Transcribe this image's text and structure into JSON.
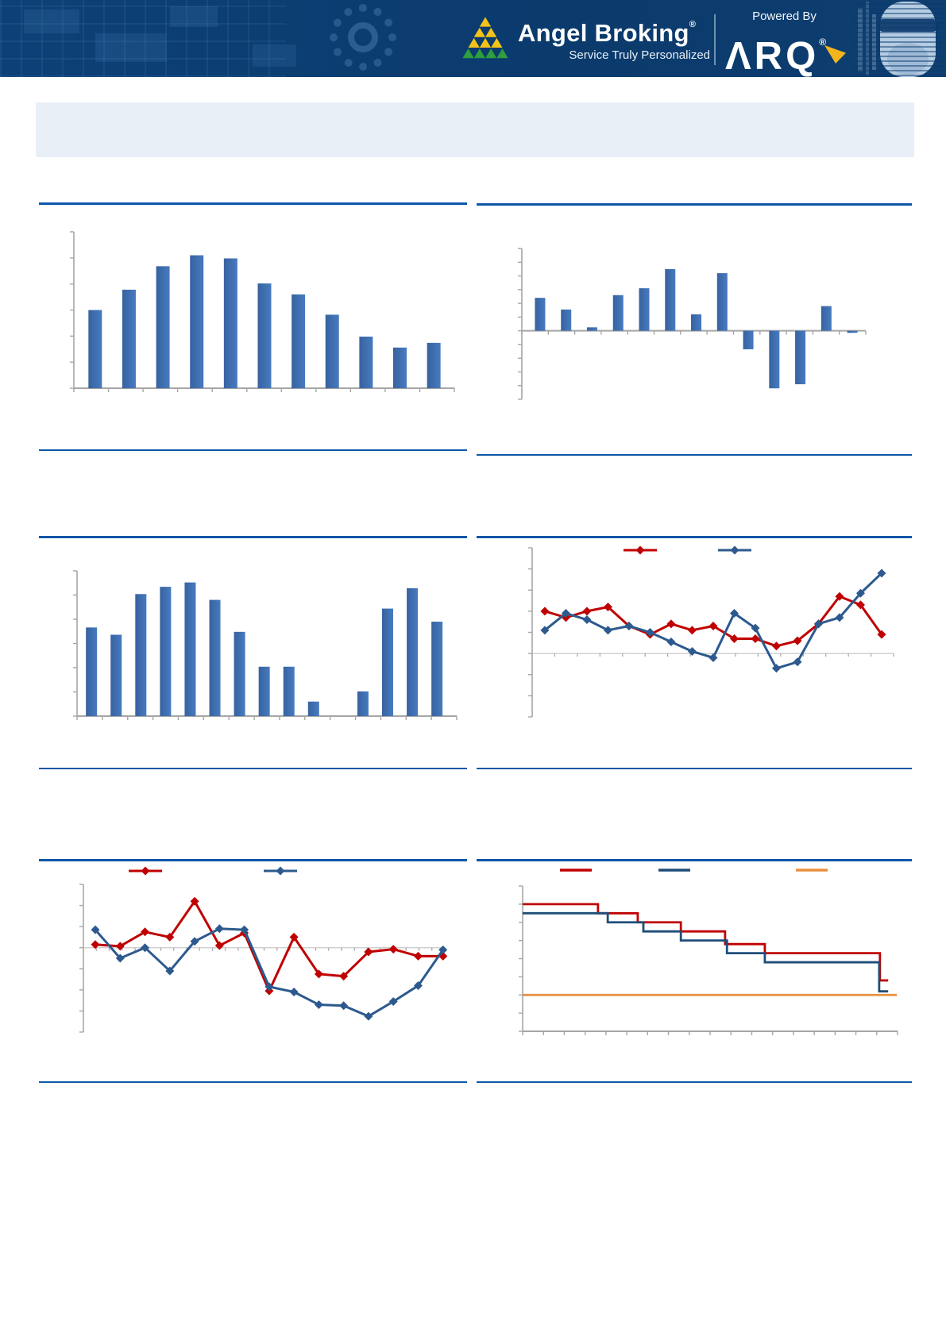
{
  "header": {
    "brand": "Angel Broking",
    "brand_reg": "®",
    "tagline": "Service Truly Personalized",
    "powered_by": "Powered By",
    "product": "ΛRQ",
    "product_reg": "®"
  },
  "colors": {
    "banner": "#0C3D71",
    "section_line": "#0D57A8",
    "title_box": "#E9EFF7",
    "axis": "#A6A6A6",
    "zero_line": "#C8C8C8",
    "bar_blue": "#3A6BB2",
    "red": "#C00000",
    "line_blue": "#2D5A8E",
    "step_blue": "#1F4E79",
    "orange": "#E8913F",
    "logo_green": "#2F9E3D",
    "logo_yellow": "#F3C317"
  },
  "chart_data": [
    {
      "id": "c1",
      "type": "bar",
      "title": "",
      "values": [
        2.5,
        3.15,
        3.9,
        4.25,
        4.15,
        3.35,
        3.0,
        2.35,
        1.65,
        1.3,
        1.45
      ],
      "ylim": [
        0,
        5
      ],
      "yticks": 7,
      "xticks": 12
    },
    {
      "id": "c2",
      "type": "bar",
      "title": "",
      "values": [
        2.4,
        1.55,
        0.25,
        2.6,
        3.1,
        4.5,
        1.2,
        4.2,
        -1.35,
        -4.2,
        -3.9,
        1.8,
        -0.15
      ],
      "ylim": [
        -5,
        6
      ],
      "yticks": 12,
      "xticks": 14
    },
    {
      "id": "c3",
      "type": "bar",
      "title": "",
      "values": [
        3.05,
        2.8,
        4.2,
        4.45,
        4.6,
        4.0,
        2.9,
        1.7,
        1.7,
        0.5,
        0,
        0.85,
        3.7,
        4.4,
        3.25
      ],
      "ylim": [
        0,
        5
      ],
      "yticks": 7,
      "xticks": 16
    },
    {
      "id": "c4",
      "type": "line",
      "title": "",
      "ylim": [
        -3,
        5
      ],
      "yticks": 9,
      "xticks": 17,
      "series": [
        {
          "name": "series-red",
          "color_key": "red",
          "marker": true,
          "values": [
            2.0,
            1.7,
            2.0,
            2.2,
            1.3,
            0.9,
            1.4,
            1.1,
            1.3,
            0.7,
            0.7,
            0.35,
            0.6,
            1.4,
            2.7,
            2.3,
            0.9
          ]
        },
        {
          "name": "series-blue",
          "color_key": "line_blue",
          "marker": true,
          "values": [
            1.1,
            1.9,
            1.6,
            1.1,
            1.3,
            1.0,
            0.55,
            0.1,
            -0.2,
            1.9,
            1.2,
            -0.7,
            -0.4,
            1.4,
            1.7,
            2.85,
            3.8
          ]
        }
      ]
    },
    {
      "id": "c5",
      "type": "line",
      "title": "",
      "ylim": [
        -4,
        3
      ],
      "yticks": 8,
      "xticks": 29,
      "series": [
        {
          "name": "series-red",
          "color_key": "red",
          "marker": true,
          "values": [
            0.15,
            0.07,
            0.75,
            0.5,
            2.2,
            0.1,
            0.7,
            -2.05,
            0.5,
            -1.25,
            -1.35,
            -0.2,
            -0.07,
            -0.4,
            -0.4
          ]
        },
        {
          "name": "series-blue",
          "color_key": "line_blue",
          "marker": true,
          "values": [
            0.85,
            -0.5,
            0,
            -1.1,
            0.3,
            0.9,
            0.85,
            -1.85,
            -2.1,
            -2.7,
            -2.75,
            -3.25,
            -2.55,
            -1.8,
            -0.1
          ]
        }
      ]
    },
    {
      "id": "c6",
      "type": "step",
      "title": "",
      "ylim": [
        0,
        8
      ],
      "yticks": 9,
      "xticks": 19,
      "series": [
        {
          "name": "series-red",
          "color_key": "red",
          "steps": [
            [
              0.201,
              7.0
            ],
            [
              0.307,
              6.5
            ],
            [
              0.422,
              6.0
            ],
            [
              0.54,
              5.5
            ],
            [
              0.646,
              4.8
            ],
            [
              0.953,
              4.3
            ],
            [
              0.975,
              2.8
            ]
          ]
        },
        {
          "name": "series-blue",
          "color_key": "step_blue",
          "steps": [
            [
              0.227,
              6.5
            ],
            [
              0.322,
              6.0
            ],
            [
              0.422,
              5.5
            ],
            [
              0.545,
              5.0
            ],
            [
              0.646,
              4.3
            ],
            [
              0.951,
              3.8
            ],
            [
              0.975,
              2.2
            ]
          ]
        },
        {
          "name": "series-orange",
          "color_key": "orange",
          "steps": [
            [
              0.998,
              2.0
            ]
          ]
        }
      ]
    }
  ]
}
